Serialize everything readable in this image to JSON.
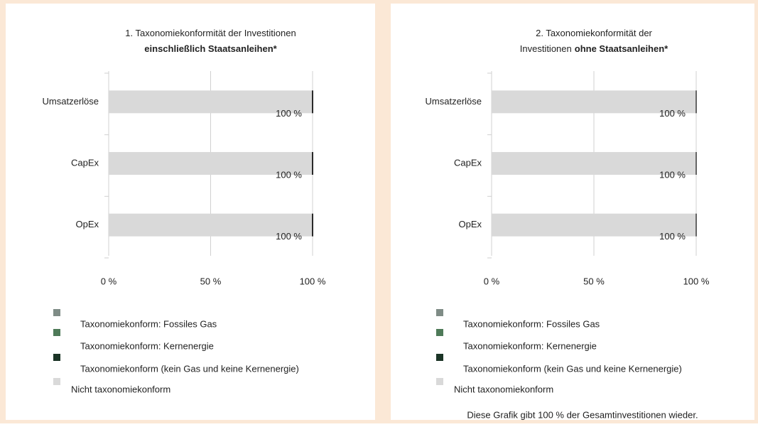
{
  "chart_data": [
    {
      "type": "stacked-bar-horizontal",
      "title_lines": [
        {
          "parts": [
            {
              "text": "1. Taxonomiekonformität der Investitionen",
              "bold": false
            }
          ]
        },
        {
          "parts": [
            {
              "text": "einschließlich Staatsanleihen*",
              "bold": true
            }
          ]
        }
      ],
      "categories": [
        "Umsatzerlöse",
        "CapEx",
        "OpEx"
      ],
      "series": [
        {
          "name": "Taxonomiekonform: Fossiles Gas",
          "color": "#7f8c86",
          "values": [
            0,
            0,
            0
          ]
        },
        {
          "name": "Taxonomiekonform: Kernenergie",
          "color": "#4e7a58",
          "values": [
            0,
            0,
            0
          ]
        },
        {
          "name": "Taxonomiekonform (kein Gas und keine Kernenergie)",
          "color": "#1b3426",
          "values": [
            0,
            0,
            0
          ]
        },
        {
          "name": "Nicht taxonomiekonform",
          "color": "#d9d9d9",
          "values": [
            100,
            100,
            100
          ],
          "value_labels": [
            "100 %",
            "100 %",
            "100 %"
          ]
        }
      ],
      "xlim": [
        0,
        100
      ],
      "xticks": [
        {
          "value": 0,
          "label": "0 %"
        },
        {
          "value": 50,
          "label": "50 %"
        },
        {
          "value": 100,
          "label": "100 %"
        }
      ],
      "grid": true
    },
    {
      "type": "stacked-bar-horizontal",
      "title_lines": [
        {
          "parts": [
            {
              "text": "2. Taxonomiekonformität der",
              "bold": false
            }
          ]
        },
        {
          "parts": [
            {
              "text": "Investitionen",
              "bold": false
            },
            {
              "text": "ohne Staatsanleihen*",
              "bold": true
            }
          ]
        }
      ],
      "categories": [
        "Umsatzerlöse",
        "CapEx",
        "OpEx"
      ],
      "series": [
        {
          "name": "Taxonomiekonform: Fossiles Gas",
          "color": "#7f8c86",
          "values": [
            0,
            0,
            0
          ]
        },
        {
          "name": "Taxonomiekonform: Kernenergie",
          "color": "#4e7a58",
          "values": [
            0,
            0,
            0
          ]
        },
        {
          "name": "Taxonomiekonform (kein Gas und keine Kernenergie)",
          "color": "#1b3426",
          "values": [
            0,
            0,
            0
          ]
        },
        {
          "name": "Nicht taxonomiekonform",
          "color": "#d9d9d9",
          "values": [
            100,
            100,
            100
          ],
          "value_labels": [
            "100 %",
            "100 %",
            "100 %"
          ]
        }
      ],
      "xlim": [
        0,
        100
      ],
      "xticks": [
        {
          "value": 0,
          "label": "0 %"
        },
        {
          "value": 50,
          "label": "50 %"
        },
        {
          "value": 100,
          "label": "100 %"
        }
      ],
      "grid": true,
      "annotation": "Diese Grafik gibt 100 % der Gesamtinvestitionen wieder."
    }
  ]
}
